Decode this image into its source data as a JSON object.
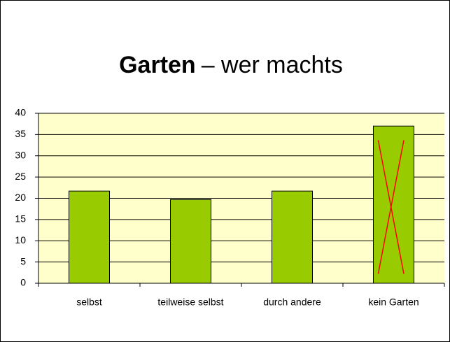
{
  "chart_data": {
    "type": "bar",
    "title": {
      "bold": "Garten",
      "rest": "– wer machts"
    },
    "categories": [
      "selbst",
      "teilweise selbst",
      "durch andere",
      "kein Garten"
    ],
    "values": [
      21.7,
      19.7,
      21.7,
      37
    ],
    "color": "#99cc00",
    "ylim": [
      0,
      40
    ],
    "yticks": [
      0,
      5,
      10,
      15,
      20,
      25,
      30,
      35,
      40
    ],
    "grid": true
  }
}
